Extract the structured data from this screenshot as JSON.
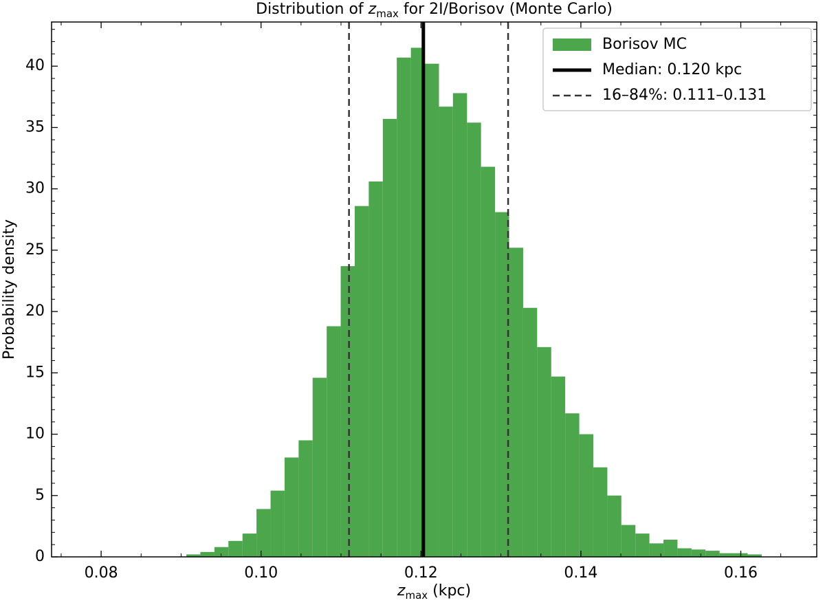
{
  "chart_data": {
    "type": "histogram",
    "title": {
      "before": "Distribution of ",
      "var": "z",
      "sub": "max",
      "after": " for 2I/Borisov (Monte Carlo)"
    },
    "xlabel": {
      "var": "z",
      "sub": "max",
      "after": " (kpc)"
    },
    "ylabel": "Probability density",
    "bins": [
      0.07837,
      0.08013,
      0.08188,
      0.08364,
      0.08539,
      0.08715,
      0.0889,
      0.09066,
      0.09241,
      0.09417,
      0.09592,
      0.09768,
      0.09943,
      0.10119,
      0.10294,
      0.1047,
      0.10645,
      0.10821,
      0.10996,
      0.11172,
      0.11347,
      0.11523,
      0.11698,
      0.11874,
      0.12049,
      0.12225,
      0.124,
      0.12576,
      0.12751,
      0.12927,
      0.13102,
      0.13278,
      0.13453,
      0.13629,
      0.13804,
      0.1398,
      0.14155,
      0.14331,
      0.14506,
      0.14682,
      0.14857,
      0.15033,
      0.15208,
      0.15384,
      0.15559,
      0.15735,
      0.1591,
      0.16086,
      0.16261
    ],
    "values": [
      0.03,
      0,
      0,
      0,
      0,
      0.02,
      0.03,
      0.2,
      0.4,
      0.8,
      1.3,
      1.9,
      3.9,
      5.4,
      8.1,
      9.5,
      14.6,
      18.8,
      23.7,
      28.6,
      30.6,
      35.7,
      40.7,
      41.5,
      40.2,
      36.7,
      37.8,
      35.4,
      31.8,
      28.1,
      25.2,
      20.3,
      17.1,
      14.7,
      11.7,
      10.0,
      7.3,
      5.0,
      2.6,
      1.9,
      1.1,
      1.4,
      0.7,
      0.6,
      0.5,
      0.3,
      0.3,
      0.2
    ],
    "name": "Borisov MC",
    "color": "#4ca64c",
    "vlines": [
      {
        "name": "Median: 0.120 kpc",
        "x": [
          0.1203
        ],
        "color": "#000000",
        "style": "solid"
      },
      {
        "name": "16–84%: 0.111–0.131",
        "x": [
          0.111,
          0.1309
        ],
        "color": "#333333",
        "style": "dashed"
      }
    ],
    "xlim": [
      0.0738,
      0.1695
    ],
    "ylim": [
      0,
      43.6
    ],
    "xticks": [
      0.08,
      {
        "value": 0.1,
        "label": "0.10"
      },
      0.12,
      0.14,
      0.16
    ],
    "yticks": [
      0,
      5,
      10,
      15,
      20,
      25,
      30,
      35,
      40
    ],
    "xminorticks": [
      0.075,
      0.085,
      0.09,
      0.095,
      0.105,
      0.11,
      0.115,
      0.125,
      0.13,
      0.135,
      0.145,
      0.15,
      0.155,
      0.165
    ],
    "yminorticks": [
      1,
      2,
      3,
      4,
      6,
      7,
      8,
      9,
      11,
      12,
      13,
      14,
      16,
      17,
      18,
      19,
      21,
      22,
      23,
      24,
      26,
      27,
      28,
      29,
      31,
      32,
      33,
      34,
      36,
      37,
      38,
      39,
      41,
      42,
      43
    ],
    "legend": "upper right"
  }
}
